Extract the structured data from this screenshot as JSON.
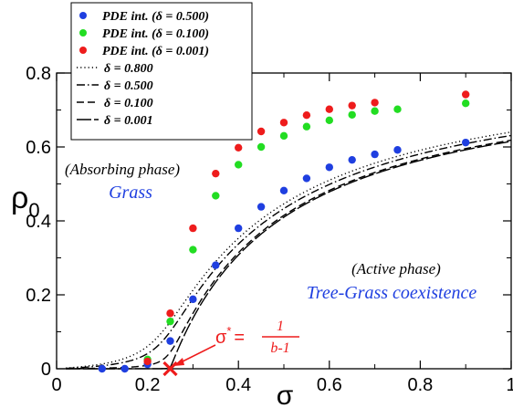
{
  "chart_data": {
    "type": "scatter",
    "xlabel": "σ",
    "ylabel_main": "ρ",
    "ylabel_sub": "0",
    "xlim": [
      0,
      1
    ],
    "ylim": [
      0,
      0.8
    ],
    "x_ticks": [
      {
        "value": 0,
        "label": "0"
      },
      {
        "value": 0.2,
        "label": "0.2"
      },
      {
        "value": 0.4,
        "label": "0.4"
      },
      {
        "value": 0.6,
        "label": "0.6"
      },
      {
        "value": 0.8,
        "label": "0.8"
      },
      {
        "value": 1,
        "label": "1"
      }
    ],
    "y_ticks": [
      {
        "value": 0,
        "label": "0"
      },
      {
        "value": 0.2,
        "label": "0.2"
      },
      {
        "value": 0.4,
        "label": "0.4"
      },
      {
        "value": 0.6,
        "label": "0.6"
      },
      {
        "value": 0.8,
        "label": "0.8"
      }
    ],
    "point_series": [
      {
        "name": "PDE int. (δ = 0.500)",
        "color": "#1f3fe0",
        "points": [
          [
            0.1,
            0
          ],
          [
            0.15,
            0
          ],
          [
            0.2,
            0.012
          ],
          [
            0.25,
            0.075
          ],
          [
            0.3,
            0.188
          ],
          [
            0.35,
            0.28
          ],
          [
            0.4,
            0.38
          ],
          [
            0.45,
            0.438
          ],
          [
            0.5,
            0.482
          ],
          [
            0.55,
            0.515
          ],
          [
            0.6,
            0.545
          ],
          [
            0.65,
            0.565
          ],
          [
            0.7,
            0.58
          ],
          [
            0.75,
            0.592
          ],
          [
            0.9,
            0.612
          ]
        ]
      },
      {
        "name": "PDE int. (δ = 0.100)",
        "color": "#22dd22",
        "points": [
          [
            0.2,
            0.025
          ],
          [
            0.25,
            0.128
          ],
          [
            0.3,
            0.322
          ],
          [
            0.35,
            0.468
          ],
          [
            0.4,
            0.552
          ],
          [
            0.45,
            0.6
          ],
          [
            0.5,
            0.63
          ],
          [
            0.55,
            0.655
          ],
          [
            0.6,
            0.672
          ],
          [
            0.65,
            0.687
          ],
          [
            0.7,
            0.697
          ],
          [
            0.75,
            0.702
          ],
          [
            0.9,
            0.718
          ]
        ]
      },
      {
        "name": "PDE int. (δ = 0.001)",
        "color": "#ee1c1c",
        "points": [
          [
            0.2,
            0.02
          ],
          [
            0.25,
            0.15
          ],
          [
            0.3,
            0.38
          ],
          [
            0.35,
            0.528
          ],
          [
            0.4,
            0.598
          ],
          [
            0.45,
            0.642
          ],
          [
            0.5,
            0.666
          ],
          [
            0.55,
            0.686
          ],
          [
            0.6,
            0.702
          ],
          [
            0.65,
            0.712
          ],
          [
            0.7,
            0.72
          ],
          [
            0.9,
            0.742
          ]
        ]
      }
    ],
    "line_series": [
      {
        "name": "δ = 0.800",
        "dash": "1.2 3",
        "delta": 0.8
      },
      {
        "name": "δ = 0.500",
        "dash": "9 3 1.5 3",
        "delta": 0.5
      },
      {
        "name": "δ = 0.100",
        "dash": "8 4",
        "delta": 0.1
      },
      {
        "name": "δ = 0.001",
        "dash": "16 3",
        "delta": 0.001
      }
    ],
    "critical_point": {
      "x": 0.25,
      "y": 0,
      "color": "#ee1c1c"
    },
    "annotations": {
      "absorbing_phase": "(Absorbing phase)",
      "grass": "Grass",
      "active_phase": "(Active phase)",
      "coexistence": "Tree-Grass coexistence",
      "sigma_star": "σ",
      "sigma_star_sup": "*",
      "equals": "=",
      "frac_num": "1",
      "frac_den": "b-1"
    },
    "annotation_colors": {
      "phase_label": "#1f3fe0",
      "critical_label": "#ee1c1c"
    },
    "legend_position": "top-left"
  }
}
